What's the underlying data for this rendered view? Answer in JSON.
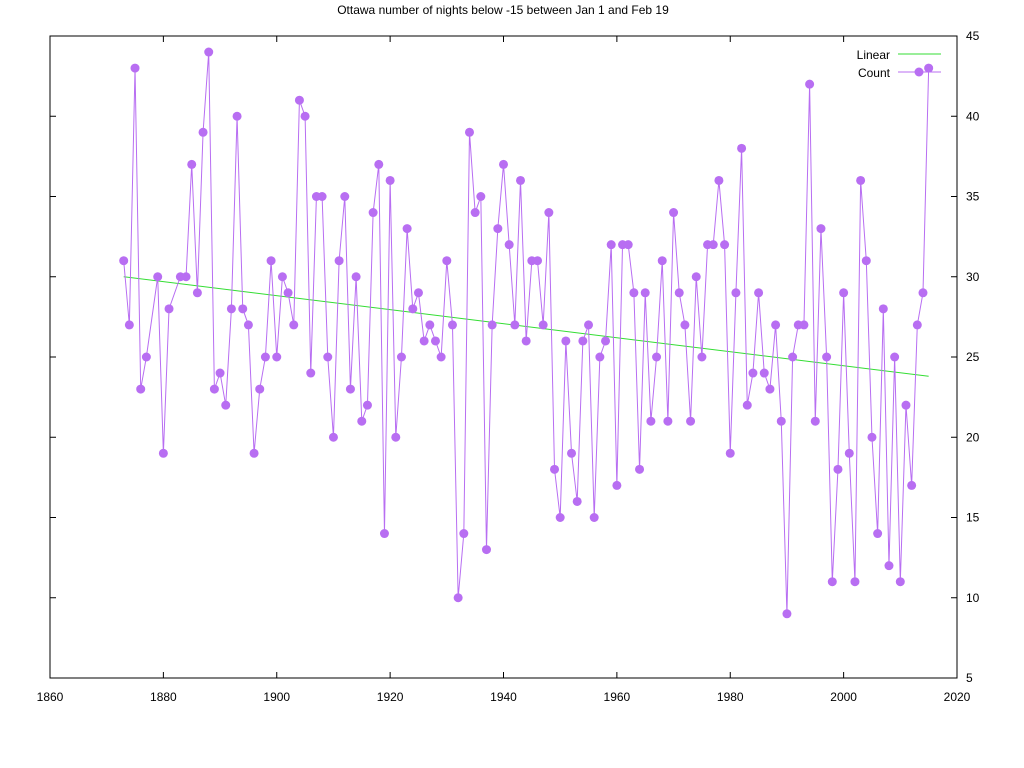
{
  "chart_data": {
    "type": "line",
    "title": "Ottawa number of nights below -15 between Jan 1 and Feb 19",
    "xlabel": "",
    "ylabel": "",
    "xlim": [
      1860,
      2020
    ],
    "ylim": [
      5,
      45
    ],
    "x_ticks": [
      1860,
      1880,
      1900,
      1920,
      1940,
      1960,
      1980,
      2000,
      2020
    ],
    "y_ticks": [
      5,
      10,
      15,
      20,
      25,
      30,
      35,
      40,
      45
    ],
    "y_axis_side": "right",
    "grid": false,
    "legend_position": "top-right",
    "series": [
      {
        "name": "Count",
        "style": "line-with-points",
        "color": "#b86ef2",
        "x": [
          1873,
          1874,
          1875,
          1876,
          1877,
          1879,
          1880,
          1881,
          1883,
          1884,
          1885,
          1886,
          1887,
          1888,
          1889,
          1890,
          1891,
          1892,
          1893,
          1894,
          1895,
          1896,
          1897,
          1898,
          1899,
          1900,
          1901,
          1902,
          1903,
          1904,
          1905,
          1906,
          1907,
          1908,
          1909,
          1910,
          1911,
          1912,
          1913,
          1914,
          1915,
          1916,
          1917,
          1918,
          1919,
          1920,
          1921,
          1922,
          1923,
          1924,
          1925,
          1926,
          1927,
          1928,
          1929,
          1930,
          1931,
          1932,
          1933,
          1934,
          1935,
          1936,
          1937,
          1938,
          1939,
          1940,
          1941,
          1942,
          1943,
          1944,
          1945,
          1946,
          1947,
          1948,
          1949,
          1950,
          1951,
          1952,
          1953,
          1954,
          1955,
          1956,
          1957,
          1958,
          1959,
          1960,
          1961,
          1962,
          1963,
          1964,
          1965,
          1966,
          1967,
          1968,
          1969,
          1970,
          1971,
          1972,
          1973,
          1974,
          1975,
          1976,
          1977,
          1978,
          1979,
          1980,
          1981,
          1982,
          1983,
          1984,
          1985,
          1986,
          1987,
          1988,
          1989,
          1990,
          1991,
          1992,
          1993,
          1994,
          1995,
          1996,
          1997,
          1998,
          1999,
          2000,
          2001,
          2002,
          2003,
          2004,
          2005,
          2006,
          2007,
          2008,
          2009,
          2010,
          2011,
          2012,
          2013,
          2014,
          2015
        ],
        "values": [
          31,
          27,
          43,
          23,
          25,
          30,
          19,
          28,
          30,
          30,
          37,
          29,
          39,
          44,
          23,
          24,
          22,
          28,
          40,
          28,
          27,
          19,
          23,
          25,
          31,
          25,
          30,
          29,
          27,
          41,
          40,
          24,
          35,
          35,
          25,
          20,
          31,
          35,
          23,
          30,
          21,
          22,
          34,
          37,
          14,
          36,
          20,
          25,
          33,
          28,
          29,
          26,
          27,
          26,
          25,
          31,
          27,
          10,
          14,
          39,
          34,
          35,
          13,
          27,
          33,
          37,
          32,
          27,
          36,
          26,
          31,
          31,
          27,
          34,
          18,
          15,
          26,
          19,
          16,
          26,
          27,
          15,
          25,
          26,
          32,
          17,
          32,
          32,
          29,
          18,
          29,
          21,
          25,
          31,
          21,
          34,
          29,
          27,
          21,
          30,
          25,
          32,
          32,
          36,
          32,
          19,
          29,
          38,
          22,
          24,
          29,
          24,
          23,
          27,
          21,
          9,
          25,
          27,
          27,
          42,
          21,
          33,
          25,
          11,
          18,
          29,
          19,
          11,
          36,
          31,
          20,
          14,
          28,
          12,
          25,
          11,
          22,
          17,
          27,
          29,
          43
        ]
      },
      {
        "name": "Linear",
        "style": "line",
        "color": "#33dd33",
        "x": [
          1873,
          2015
        ],
        "values": [
          30.0,
          23.8
        ]
      }
    ]
  }
}
